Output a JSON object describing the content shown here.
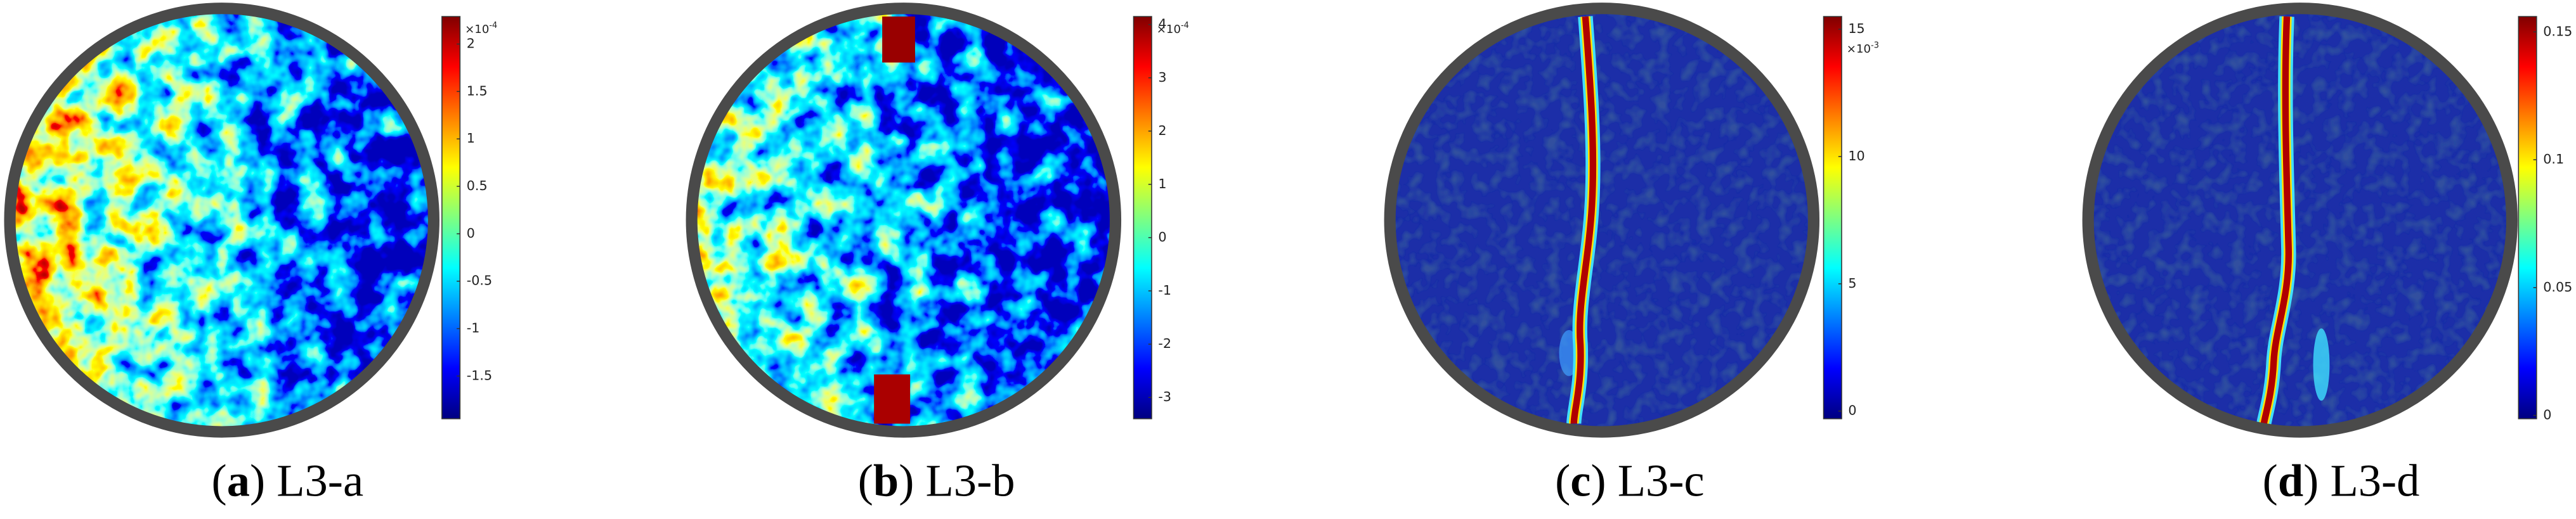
{
  "panels": [
    {
      "open": "(",
      "letter": "a",
      "close": ")",
      "caption": "L3-a",
      "exponent": {
        "base": "×10",
        "power": "-4"
      },
      "range": [
        -1.95,
        2.29
      ],
      "ticks": [
        2,
        1.5,
        1,
        0.5,
        0,
        -0.5,
        -1,
        -1.5
      ]
    },
    {
      "open": "(",
      "letter": "b",
      "close": ")",
      "caption": "L3-b",
      "exponent": {
        "base": "×10",
        "power": "-4"
      },
      "range": [
        -3.4,
        4.15
      ],
      "ticks": [
        4,
        3,
        2,
        1,
        0,
        -1,
        -2,
        -3
      ]
    },
    {
      "open": "(",
      "letter": "c",
      "close": ")",
      "caption": "L3-c",
      "exponent": {
        "base": "×10",
        "power": "-3"
      },
      "range": [
        -0.3,
        15.5
      ],
      "ticks": [
        15,
        10,
        5,
        0
      ]
    },
    {
      "open": "(",
      "letter": "d",
      "close": ")",
      "caption": "L3-d",
      "range": [
        -0.0013,
        0.156
      ],
      "ticks": [
        0.15,
        0.1,
        0.05,
        0
      ]
    }
  ]
}
